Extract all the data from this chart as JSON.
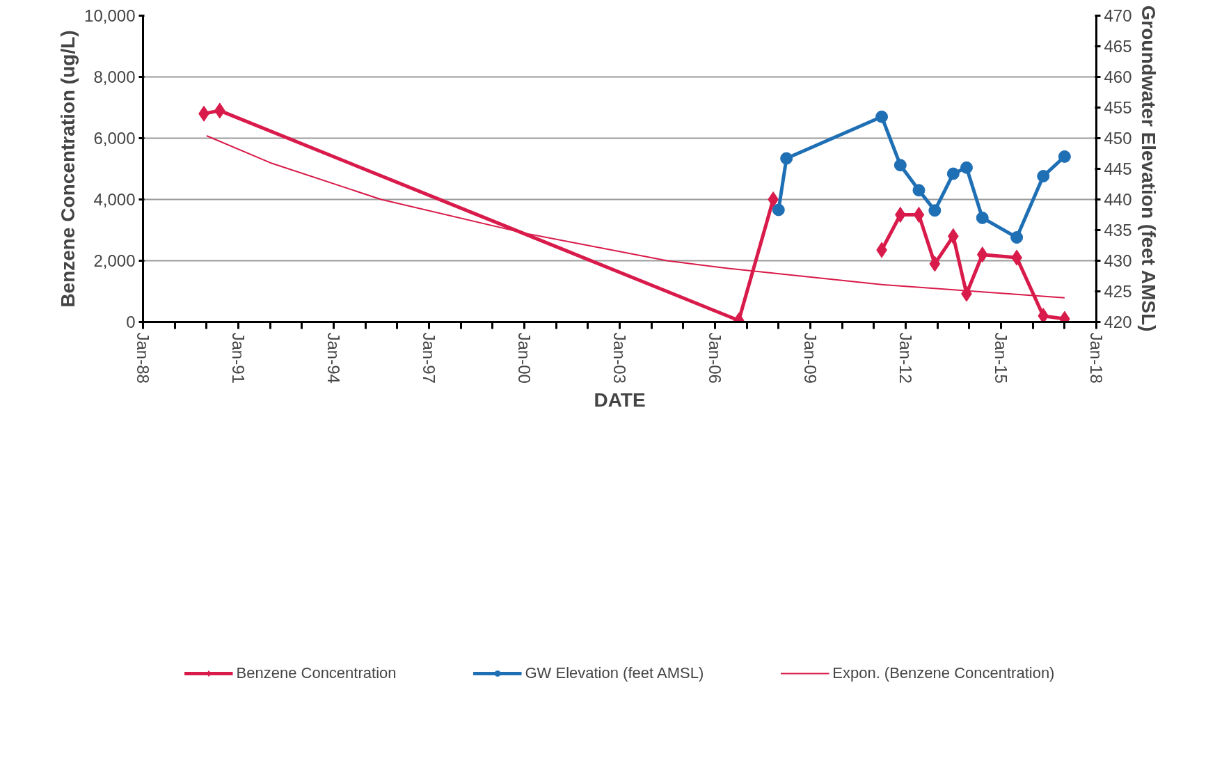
{
  "chart_data": {
    "type": "line",
    "xlabel": "DATE",
    "ylabel": "Benzene Concentration (ug/L)",
    "y2label": "Groundwater Elevation (feet AMSL)",
    "xlim": [
      "1988-01",
      "2018-01"
    ],
    "xticks": [
      {
        "value": "1988-01",
        "label": "Jan-88"
      },
      {
        "value": "1989-01",
        "label": null
      },
      {
        "value": "1990-01",
        "label": null
      },
      {
        "value": "1991-01",
        "label": "Jan-91"
      },
      {
        "value": "1992-01",
        "label": null
      },
      {
        "value": "1993-01",
        "label": null
      },
      {
        "value": "1994-01",
        "label": "Jan-94"
      },
      {
        "value": "1995-01",
        "label": null
      },
      {
        "value": "1996-01",
        "label": null
      },
      {
        "value": "1997-01",
        "label": "Jan-97"
      },
      {
        "value": "1998-01",
        "label": null
      },
      {
        "value": "1999-01",
        "label": null
      },
      {
        "value": "2000-01",
        "label": "Jan-00"
      },
      {
        "value": "2001-01",
        "label": null
      },
      {
        "value": "2002-01",
        "label": null
      },
      {
        "value": "2003-01",
        "label": "Jan-03"
      },
      {
        "value": "2004-01",
        "label": null
      },
      {
        "value": "2005-01",
        "label": null
      },
      {
        "value": "2006-01",
        "label": "Jan-06"
      },
      {
        "value": "2007-01",
        "label": null
      },
      {
        "value": "2008-01",
        "label": null
      },
      {
        "value": "2009-01",
        "label": "Jan-09"
      },
      {
        "value": "2010-01",
        "label": null
      },
      {
        "value": "2011-01",
        "label": null
      },
      {
        "value": "2012-01",
        "label": "Jan-12"
      },
      {
        "value": "2013-01",
        "label": null
      },
      {
        "value": "2014-01",
        "label": null
      },
      {
        "value": "2015-01",
        "label": "Jan-15"
      },
      {
        "value": "2016-01",
        "label": null
      },
      {
        "value": "2017-01",
        "label": null
      },
      {
        "value": "2018-01",
        "label": "Jan-18"
      }
    ],
    "ylim": [
      0,
      10000
    ],
    "yticks": [
      {
        "value": 0,
        "label": "0"
      },
      {
        "value": 2000,
        "label": "2,000"
      },
      {
        "value": 4000,
        "label": "4,000"
      },
      {
        "value": 6000,
        "label": "6,000"
      },
      {
        "value": 8000,
        "label": "8,000"
      },
      {
        "value": 10000,
        "label": "10,000"
      }
    ],
    "y2lim": [
      420,
      470
    ],
    "y2ticks": [
      420,
      425,
      430,
      435,
      440,
      445,
      450,
      455,
      460,
      465,
      470
    ],
    "grid": "y",
    "legend": "bottom",
    "series": [
      {
        "name": "Benzene Concentration",
        "color": "#d81b4a",
        "marker": "diamond",
        "x": [
          "1989-12",
          "1990-06",
          "2006-10",
          "2007-11",
          "2009-06",
          "2011-04",
          "2011-11",
          "2012-06",
          "2012-12",
          "2013-07",
          "2013-12",
          "2014-06",
          "2015-07",
          "2016-05",
          "2017-01"
        ],
        "values": [
          6800,
          6900,
          50,
          4000,
          null,
          2350,
          3500,
          3500,
          1900,
          2800,
          920,
          2200,
          2100,
          200,
          100
        ]
      },
      {
        "name": "GW Elevation (feet AMSL)",
        "color": "#1f6fb5",
        "marker": "circle",
        "axis": "y2",
        "x": [
          "2008-01",
          "2008-04",
          "2011-04",
          "2011-11",
          "2012-06",
          "2012-12",
          "2013-07",
          "2013-12",
          "2014-06",
          "2015-07",
          "2016-05",
          "2017-01"
        ],
        "values": [
          438.3,
          446.7,
          453.5,
          445.6,
          441.5,
          438.2,
          444.2,
          445.2,
          437.0,
          433.8,
          443.8,
          447.0
        ]
      },
      {
        "name": "Expon. (Benzene Concentration)",
        "color": "#d81b4a",
        "marker": "none",
        "x": [
          "1990-01",
          "1992-01",
          "1995-07",
          "2000-01",
          "2004-07",
          "2006-06",
          "2011-04",
          "2017-01"
        ],
        "values": [
          6080,
          5200,
          4000,
          2900,
          2000,
          1750,
          1220,
          790
        ]
      }
    ]
  }
}
